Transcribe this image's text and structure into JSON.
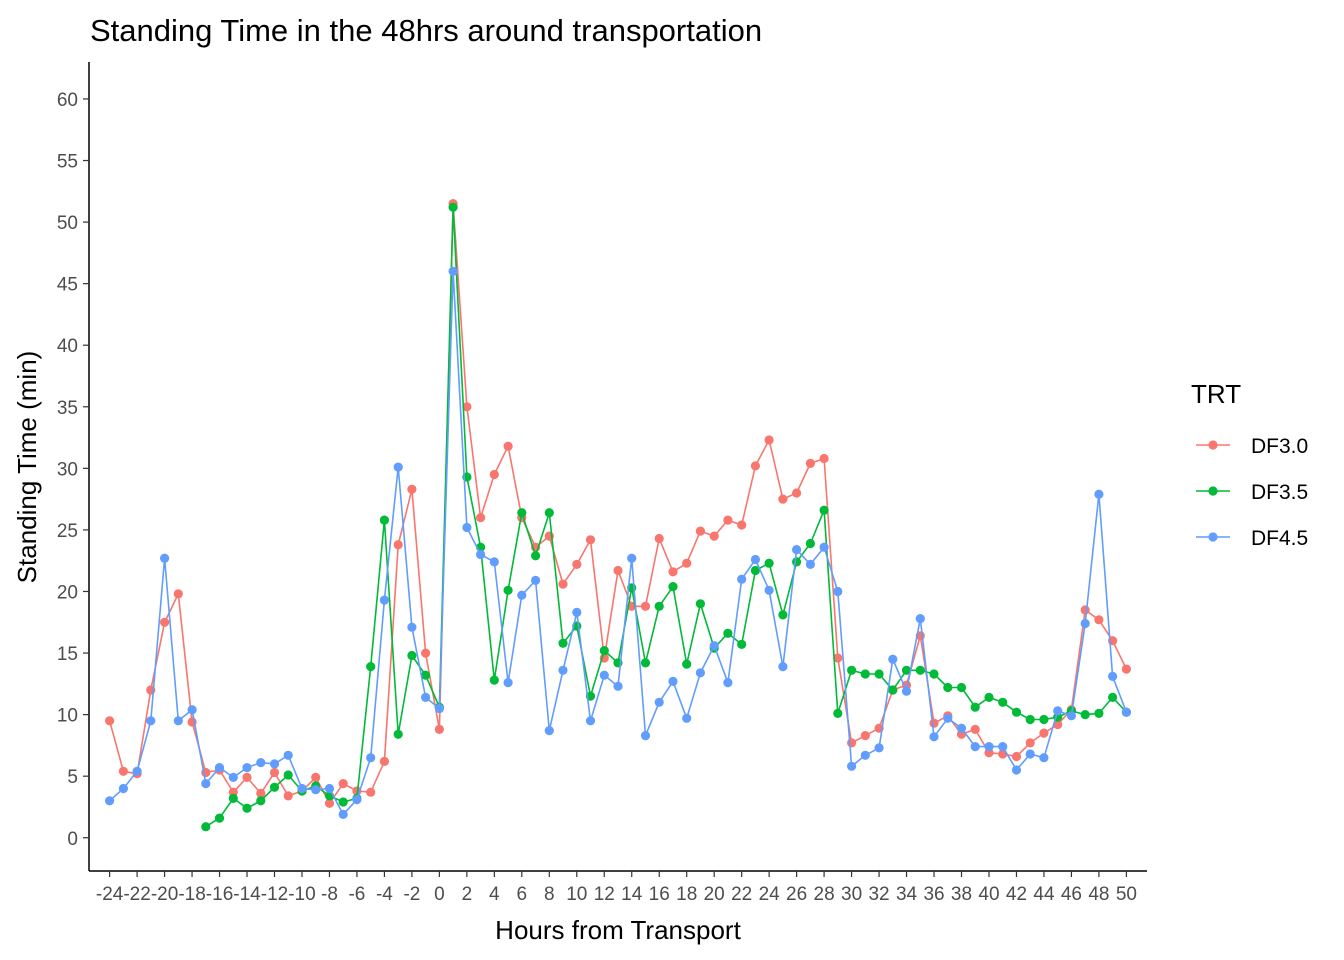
{
  "chart_data": {
    "type": "line",
    "title": "Standing Time in the 48hrs around transportation",
    "xlabel": "Hours from Transport",
    "ylabel": "Standing Time (min)",
    "xlim": [
      -25.5,
      51.5
    ],
    "ylim": [
      -2.7,
      63.0
    ],
    "x_ticks": [
      -24,
      -22,
      -20,
      -18,
      -16,
      -14,
      -12,
      -10,
      -8,
      -6,
      -4,
      -2,
      0,
      2,
      4,
      6,
      8,
      10,
      12,
      14,
      16,
      18,
      20,
      22,
      24,
      26,
      28,
      30,
      32,
      34,
      36,
      38,
      40,
      42,
      44,
      46,
      48,
      50
    ],
    "x_tick_labels": [
      "-24",
      "-22",
      "-20",
      "-18",
      "-16",
      "-14",
      "-12",
      "-10",
      "-8",
      "-6",
      "-4",
      "-2",
      "0",
      "2",
      "4",
      "6",
      "8",
      "10",
      "12",
      "14",
      "16",
      "18",
      "20",
      "22",
      "24",
      "26",
      "28",
      "30",
      "32",
      "34",
      "36",
      "38",
      "40",
      "42",
      "44",
      "46",
      "48",
      "50"
    ],
    "y_ticks": [
      0,
      5,
      10,
      15,
      20,
      25,
      30,
      35,
      40,
      45,
      50,
      55,
      60
    ],
    "y_tick_labels": [
      "0",
      "5",
      "10",
      "15",
      "20",
      "25",
      "30",
      "35",
      "40",
      "45",
      "50",
      "55",
      "60"
    ],
    "grid": false,
    "legend": {
      "title": "TRT",
      "position": "right"
    },
    "series": [
      {
        "name": "DF3.0",
        "color": "#F8766D",
        "x": [
          -24,
          -23,
          -22,
          -21,
          -20,
          -19,
          -18,
          -17,
          -16,
          -15,
          -14,
          -13,
          -12,
          -11,
          -10,
          -9,
          -8,
          -7,
          -6,
          -5,
          -4,
          -3,
          -2,
          -1,
          0,
          1,
          2,
          3,
          4,
          5,
          6,
          7,
          8,
          9,
          10,
          11,
          12,
          13,
          14,
          15,
          16,
          17,
          18,
          19,
          20,
          21,
          22,
          23,
          24,
          25,
          26,
          27,
          28,
          29,
          30,
          31,
          32,
          33,
          34,
          35,
          36,
          37,
          38,
          39,
          40,
          41,
          42,
          43,
          44,
          45,
          46,
          47,
          48,
          49,
          50
        ],
        "y": [
          9.5,
          5.4,
          5.2,
          12.0,
          17.5,
          19.8,
          9.4,
          5.3,
          5.5,
          3.7,
          4.9,
          3.6,
          5.3,
          3.4,
          3.8,
          4.9,
          2.8,
          4.4,
          3.8,
          3.7,
          6.2,
          23.8,
          28.3,
          15.0,
          8.8,
          51.5,
          35.0,
          26.0,
          29.5,
          31.8,
          26.0,
          23.6,
          24.5,
          20.6,
          22.2,
          24.2,
          14.6,
          21.7,
          18.8,
          18.8,
          24.3,
          21.6,
          22.3,
          24.9,
          24.5,
          25.8,
          25.4,
          30.2,
          32.3,
          27.5,
          28.0,
          30.4,
          30.8,
          14.6,
          7.7,
          8.3,
          8.9,
          12.0,
          12.4,
          16.4,
          9.3,
          9.9,
          8.4,
          8.8,
          6.9,
          6.8,
          6.6,
          7.7,
          8.5,
          9.2,
          10.4,
          18.5,
          17.7,
          16.0,
          13.7
        ]
      },
      {
        "name": "DF3.5",
        "color": "#00BA38",
        "x": [
          -17,
          -16,
          -15,
          -14,
          -13,
          -12,
          -11,
          -10,
          -9,
          -8,
          -7,
          -6,
          -5,
          -4,
          -3,
          -2,
          -1,
          0,
          1,
          2,
          3,
          4,
          5,
          6,
          7,
          8,
          9,
          10,
          11,
          12,
          13,
          14,
          15,
          16,
          17,
          18,
          19,
          20,
          21,
          22,
          23,
          24,
          25,
          26,
          27,
          28,
          29,
          30,
          31,
          32,
          33,
          34,
          35,
          36,
          37,
          38,
          39,
          40,
          41,
          42,
          43,
          44,
          45,
          46,
          47,
          48,
          49,
          50
        ],
        "y": [
          0.9,
          1.6,
          3.2,
          2.4,
          3.0,
          4.1,
          5.1,
          3.8,
          4.2,
          3.4,
          2.9,
          3.2,
          13.9,
          25.8,
          8.4,
          14.8,
          13.2,
          10.6,
          51.2,
          29.3,
          23.6,
          12.8,
          20.1,
          26.4,
          22.9,
          26.4,
          15.8,
          17.2,
          11.5,
          15.2,
          14.2,
          20.3,
          14.2,
          18.8,
          20.4,
          14.1,
          19.0,
          15.4,
          16.6,
          15.7,
          21.7,
          22.3,
          18.1,
          22.4,
          23.9,
          26.6,
          10.1,
          13.6,
          13.3,
          13.3,
          12.0,
          13.6,
          13.6,
          13.3,
          12.2,
          12.2,
          10.6,
          11.4,
          11.0,
          10.2,
          9.6,
          9.6,
          9.8,
          10.3,
          10.0,
          10.1,
          11.4,
          10.2
        ]
      },
      {
        "name": "DF4.5",
        "color": "#619CFF",
        "x": [
          -24,
          -23,
          -22,
          -21,
          -20,
          -19,
          -18,
          -17,
          -16,
          -15,
          -14,
          -13,
          -12,
          -11,
          -10,
          -9,
          -8,
          -7,
          -6,
          -5,
          -4,
          -3,
          -2,
          -1,
          0,
          1,
          2,
          3,
          4,
          5,
          6,
          7,
          8,
          9,
          10,
          11,
          12,
          13,
          14,
          15,
          16,
          17,
          18,
          19,
          20,
          21,
          22,
          23,
          24,
          25,
          26,
          27,
          28,
          29,
          30,
          31,
          32,
          33,
          34,
          35,
          36,
          37,
          38,
          39,
          40,
          41,
          42,
          43,
          44,
          45,
          46,
          47,
          48,
          49,
          50
        ],
        "y": [
          3.0,
          4.0,
          5.4,
          9.5,
          22.7,
          9.5,
          10.4,
          4.4,
          5.7,
          4.9,
          5.7,
          6.1,
          6.0,
          6.7,
          4.0,
          3.9,
          4.0,
          1.9,
          3.1,
          6.5,
          19.3,
          30.1,
          17.1,
          11.4,
          10.5,
          46.0,
          25.2,
          23.0,
          22.4,
          12.6,
          19.7,
          20.9,
          8.7,
          13.6,
          18.3,
          9.5,
          13.2,
          12.3,
          22.7,
          8.3,
          11.0,
          12.7,
          9.7,
          13.4,
          15.6,
          12.6,
          21.0,
          22.6,
          20.1,
          13.9,
          23.4,
          22.2,
          23.6,
          20.0,
          5.8,
          6.7,
          7.3,
          14.5,
          11.9,
          17.8,
          8.2,
          9.7,
          8.9,
          7.4,
          7.4,
          7.4,
          5.5,
          6.8,
          6.5,
          10.3,
          9.9,
          17.4,
          27.9,
          13.1,
          10.2
        ]
      }
    ]
  }
}
